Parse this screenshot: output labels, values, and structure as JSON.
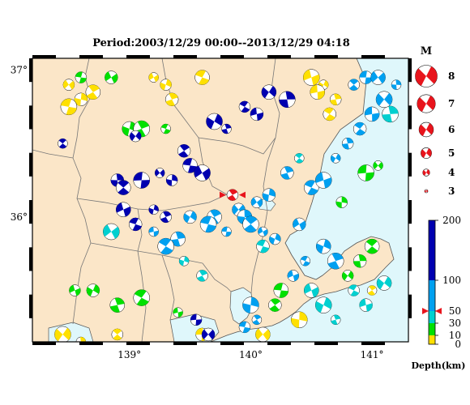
{
  "title": "Period:2003/12/29 00:00--2013/12/29 04:18",
  "colors": {
    "land": "#fbe6c8",
    "sea": "#dff7fb",
    "border": "#777777",
    "coast": "#555555",
    "mech_red": "#e8141c",
    "depth_0_10": "#ffe000",
    "depth_10_30": "#00e000",
    "depth_30_50": "#00d0d0",
    "depth_50_100": "#00a0f0",
    "depth_100_200": "#0000b0"
  },
  "map": {
    "lon_min": 138.2,
    "lon_max": 141.3,
    "lat_min": 35.15,
    "lat_max": 37.08,
    "x_ticks": [
      "139°",
      "140°",
      "141°"
    ],
    "x_tick_values": [
      139,
      140,
      141
    ],
    "y_ticks": [
      "37°",
      "36°"
    ],
    "y_tick_values": [
      37,
      36
    ]
  },
  "magnitude_legend": {
    "title": "M",
    "entries": [
      {
        "label": "8",
        "value": 8
      },
      {
        "label": "7",
        "value": 7
      },
      {
        "label": "6",
        "value": 6
      },
      {
        "label": "5",
        "value": 5
      },
      {
        "label": "4",
        "value": 4
      },
      {
        "label": "3",
        "value": 3
      }
    ]
  },
  "depth_scale": {
    "title": "Depth(km)",
    "ticks": [
      "200",
      "100",
      "50",
      "30",
      "10",
      "0"
    ],
    "tick_values": [
      200,
      100,
      50,
      30,
      10,
      0
    ],
    "marker_value": 50
  },
  "chart_data": {
    "type": "scatter",
    "title": "Period:2003/12/29 00:00--2013/12/29 04:18",
    "xlabel": "",
    "ylabel": "",
    "xlim": [
      138.2,
      141.3
    ],
    "ylim": [
      35.15,
      37.08
    ],
    "size_legend_title": "M",
    "color_legend_title": "Depth(km)",
    "highlighted_event": {
      "lon": 139.85,
      "lat": 36.15,
      "depth_class": "red"
    },
    "note_series": "focal mechanisms colored by depth class",
    "series": [
      {
        "depth_class": "0-10",
        "points": [
          [
            138.5,
            36.9
          ],
          [
            138.6,
            36.8
          ],
          [
            138.7,
            36.85
          ],
          [
            138.5,
            36.75
          ],
          [
            139.2,
            36.95
          ],
          [
            139.3,
            36.9
          ],
          [
            139.35,
            36.8
          ],
          [
            139.6,
            36.95
          ],
          [
            140.5,
            36.95
          ],
          [
            140.6,
            36.9
          ],
          [
            140.7,
            36.8
          ],
          [
            140.65,
            36.7
          ],
          [
            140.55,
            36.85
          ],
          [
            138.45,
            35.2
          ],
          [
            138.6,
            35.15
          ],
          [
            138.9,
            35.2
          ],
          [
            139.6,
            35.2
          ],
          [
            140.1,
            35.2
          ],
          [
            140.4,
            35.3
          ],
          [
            141.0,
            35.5
          ]
        ]
      },
      {
        "depth_class": "10-30",
        "points": [
          [
            138.6,
            36.95
          ],
          [
            138.85,
            36.95
          ],
          [
            139.0,
            36.6
          ],
          [
            139.1,
            36.6
          ],
          [
            139.3,
            36.6
          ],
          [
            138.55,
            35.5
          ],
          [
            138.7,
            35.5
          ],
          [
            138.9,
            35.4
          ],
          [
            139.1,
            35.45
          ],
          [
            139.4,
            35.35
          ],
          [
            140.8,
            35.6
          ],
          [
            140.9,
            35.7
          ],
          [
            141.0,
            35.8
          ],
          [
            140.95,
            36.3
          ],
          [
            141.05,
            36.35
          ],
          [
            140.75,
            36.1
          ],
          [
            140.2,
            35.4
          ],
          [
            140.25,
            35.5
          ]
        ]
      },
      {
        "depth_class": "30-50",
        "points": [
          [
            138.85,
            35.9
          ],
          [
            139.45,
            35.7
          ],
          [
            139.6,
            35.6
          ],
          [
            140.1,
            35.8
          ],
          [
            140.5,
            35.5
          ],
          [
            140.6,
            35.4
          ],
          [
            140.7,
            35.3
          ],
          [
            140.85,
            35.5
          ],
          [
            140.95,
            35.4
          ],
          [
            141.1,
            35.55
          ],
          [
            141.15,
            36.7
          ],
          [
            140.4,
            36.4
          ],
          [
            140.3,
            36.3
          ]
        ]
      },
      {
        "depth_class": "50-100",
        "points": [
          [
            139.9,
            36.05
          ],
          [
            139.95,
            36.0
          ],
          [
            140.0,
            35.95
          ],
          [
            139.8,
            35.9
          ],
          [
            140.05,
            36.1
          ],
          [
            140.15,
            36.15
          ],
          [
            139.7,
            36.0
          ],
          [
            139.65,
            35.95
          ],
          [
            140.1,
            35.9
          ],
          [
            140.2,
            35.85
          ],
          [
            140.3,
            36.3
          ],
          [
            140.5,
            36.2
          ],
          [
            140.6,
            36.25
          ],
          [
            140.7,
            36.4
          ],
          [
            140.8,
            36.5
          ],
          [
            140.9,
            36.6
          ],
          [
            141.0,
            36.7
          ],
          [
            141.1,
            36.8
          ],
          [
            141.2,
            36.9
          ],
          [
            140.85,
            36.9
          ],
          [
            140.95,
            36.95
          ],
          [
            141.05,
            36.95
          ],
          [
            140.0,
            35.4
          ],
          [
            140.05,
            35.3
          ],
          [
            139.95,
            35.25
          ],
          [
            140.4,
            35.95
          ],
          [
            140.6,
            35.8
          ],
          [
            140.7,
            35.7
          ],
          [
            140.45,
            35.7
          ],
          [
            140.35,
            35.6
          ],
          [
            139.5,
            36.0
          ],
          [
            139.4,
            35.85
          ],
          [
            139.3,
            35.8
          ],
          [
            139.2,
            35.9
          ]
        ]
      },
      {
        "depth_class": "100-200",
        "points": [
          [
            139.05,
            36.55
          ],
          [
            138.9,
            36.25
          ],
          [
            138.95,
            36.2
          ],
          [
            139.1,
            36.25
          ],
          [
            139.25,
            36.3
          ],
          [
            139.35,
            36.25
          ],
          [
            139.45,
            36.45
          ],
          [
            139.5,
            36.35
          ],
          [
            139.6,
            36.3
          ],
          [
            139.2,
            36.05
          ],
          [
            139.3,
            36.0
          ],
          [
            139.05,
            35.95
          ],
          [
            138.95,
            36.05
          ],
          [
            139.7,
            36.65
          ],
          [
            139.8,
            36.6
          ],
          [
            139.95,
            36.75
          ],
          [
            140.05,
            36.7
          ],
          [
            140.15,
            36.85
          ],
          [
            140.3,
            36.8
          ],
          [
            138.45,
            36.5
          ],
          [
            139.55,
            35.3
          ],
          [
            139.65,
            35.2
          ]
        ]
      }
    ]
  }
}
